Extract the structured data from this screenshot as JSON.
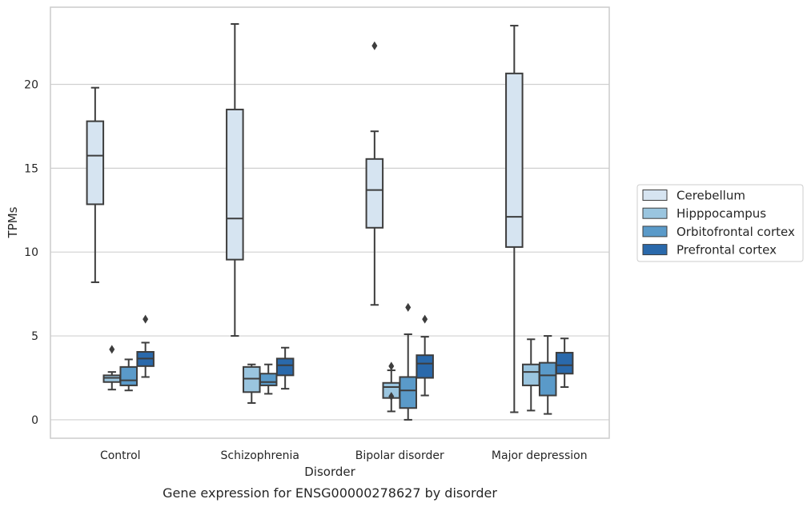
{
  "chart_data": {
    "type": "box",
    "caption": "Gene expression for ENSG00000278627 by disorder",
    "xlabel": "Disorder",
    "ylabel": "TPMs",
    "ylim": [
      -1.1,
      24.6
    ],
    "yticks": [
      0,
      5,
      10,
      15,
      20
    ],
    "grid": "horizontal",
    "legend_placement": "right",
    "categories": [
      "Control",
      "Schizophrenia",
      "Bipolar disorder",
      "Major depression"
    ],
    "series": [
      {
        "name": "Cerebellum",
        "color": "#d6e4f1",
        "boxes": [
          {
            "min": 8.2,
            "q1": 12.85,
            "median": 15.75,
            "q3": 17.8,
            "max": 19.8,
            "outliers": []
          },
          {
            "min": 5.0,
            "q1": 9.55,
            "median": 12.0,
            "q3": 18.5,
            "max": 23.6,
            "outliers": []
          },
          {
            "min": 6.85,
            "q1": 11.45,
            "median": 13.7,
            "q3": 15.55,
            "max": 17.2,
            "outliers": [
              22.3
            ]
          },
          {
            "min": 0.45,
            "q1": 10.3,
            "median": 12.1,
            "q3": 20.65,
            "max": 23.5,
            "outliers": []
          }
        ]
      },
      {
        "name": "Hipppocampus",
        "color": "#9ac5df",
        "boxes": [
          {
            "min": 1.8,
            "q1": 2.25,
            "median": 2.5,
            "q3": 2.65,
            "max": 2.85,
            "outliers": [
              4.2
            ]
          },
          {
            "min": 1.0,
            "q1": 1.65,
            "median": 2.45,
            "q3": 3.15,
            "max": 3.3,
            "outliers": []
          },
          {
            "min": 0.5,
            "q1": 1.3,
            "median": 1.95,
            "q3": 2.2,
            "max": 2.95,
            "outliers": [
              3.2,
              1.4
            ]
          },
          {
            "min": 0.55,
            "q1": 2.05,
            "median": 2.85,
            "q3": 3.3,
            "max": 4.8,
            "outliers": []
          }
        ]
      },
      {
        "name": "Orbitofrontal cortex",
        "color": "#5a9ac9",
        "boxes": [
          {
            "min": 1.75,
            "q1": 2.05,
            "median": 2.35,
            "q3": 3.15,
            "max": 3.6,
            "outliers": []
          },
          {
            "min": 1.55,
            "q1": 2.05,
            "median": 2.25,
            "q3": 2.75,
            "max": 3.3,
            "outliers": []
          },
          {
            "min": 0.0,
            "q1": 0.7,
            "median": 1.75,
            "q3": 2.55,
            "max": 5.1,
            "outliers": [
              6.7
            ]
          },
          {
            "min": 0.35,
            "q1": 1.45,
            "median": 2.65,
            "q3": 3.4,
            "max": 5.0,
            "outliers": []
          }
        ]
      },
      {
        "name": "Prefrontal cortex",
        "color": "#2a69ab",
        "boxes": [
          {
            "min": 2.55,
            "q1": 3.2,
            "median": 3.65,
            "q3": 4.05,
            "max": 4.6,
            "outliers": [
              6.0
            ]
          },
          {
            "min": 1.85,
            "q1": 2.65,
            "median": 3.25,
            "q3": 3.65,
            "max": 4.3,
            "outliers": []
          },
          {
            "min": 1.45,
            "q1": 2.5,
            "median": 3.35,
            "q3": 3.85,
            "max": 4.95,
            "outliers": [
              6.0
            ]
          },
          {
            "min": 1.95,
            "q1": 2.75,
            "median": 3.25,
            "q3": 4.0,
            "max": 4.85,
            "outliers": []
          }
        ]
      }
    ]
  }
}
